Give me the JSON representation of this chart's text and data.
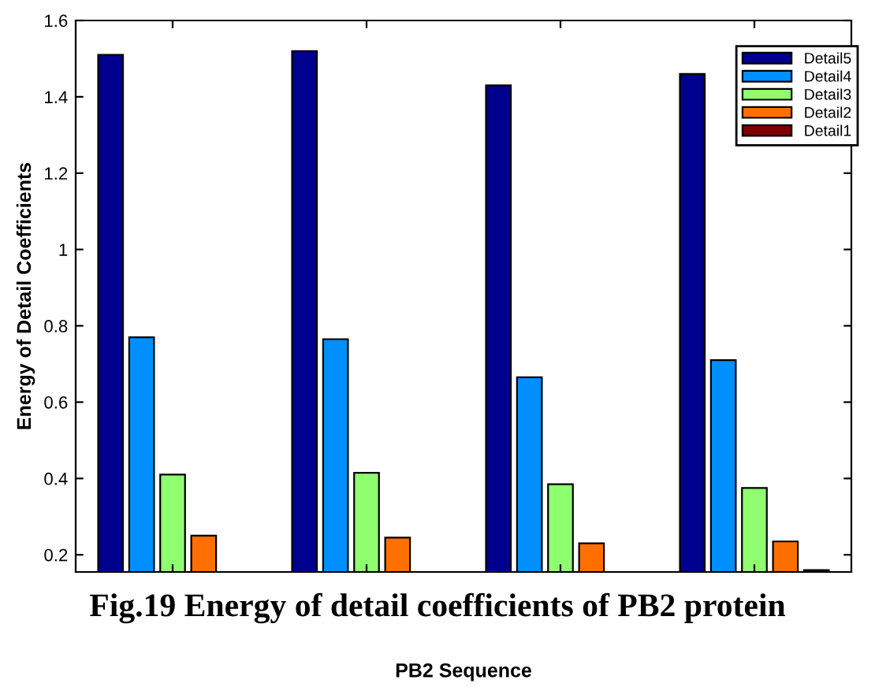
{
  "chart_data": {
    "type": "bar",
    "ylabel": "Energy of Detail Coefficients",
    "xlabel": "PB2 Sequence",
    "annotations": [
      "Fig.19 Energy of detail coefficients of PB2 protein"
    ],
    "categories": [
      null,
      null,
      null,
      null
    ],
    "series": [
      {
        "name": "Detail5",
        "color": "#00008f",
        "values": [
          1.51,
          1.52,
          1.43,
          1.46
        ]
      },
      {
        "name": "Detail4",
        "color": "#008fff",
        "values": [
          0.77,
          0.765,
          0.665,
          0.71
        ]
      },
      {
        "name": "Detail3",
        "color": "#8fff70",
        "values": [
          0.41,
          0.415,
          0.385,
          0.375
        ]
      },
      {
        "name": "Detail2",
        "color": "#ff7000",
        "values": [
          0.25,
          0.245,
          0.23,
          0.235
        ]
      },
      {
        "name": "Detail1",
        "color": "#800000",
        "values": [
          null,
          null,
          null,
          0.16
        ]
      }
    ],
    "ylim": [
      0.155,
      1.6
    ],
    "yticks": [
      {
        "value": 0.2,
        "label": "0.2"
      },
      {
        "value": 0.4,
        "label": "0.4"
      },
      {
        "value": 0.6,
        "label": "0.6"
      },
      {
        "value": 0.8,
        "label": "0.8"
      },
      {
        "value": 1,
        "label": "1"
      },
      {
        "value": 1.2,
        "label": "1.2"
      },
      {
        "value": 1.4,
        "label": "1.4"
      },
      {
        "value": 1.6,
        "label": "1.6"
      }
    ],
    "legend": "top right",
    "grid": false
  }
}
